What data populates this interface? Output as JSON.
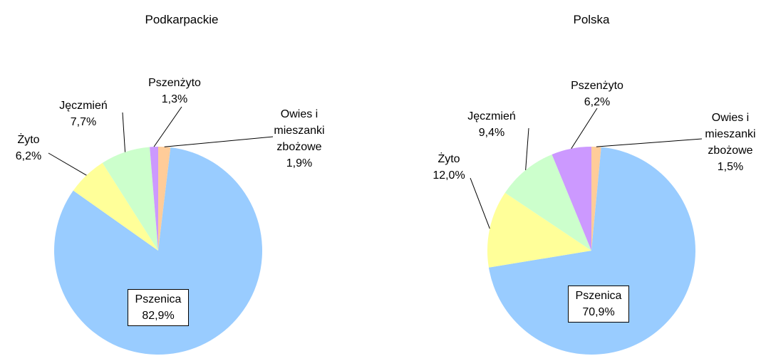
{
  "chart_data": [
    {
      "type": "pie",
      "title": "Podkarpackie",
      "categories": [
        "Owies i mieszanki zbożowe",
        "Pszenica",
        "Żyto",
        "Jęczmień",
        "Pszenżyto"
      ],
      "values": [
        1.9,
        82.9,
        6.2,
        7.7,
        1.3
      ],
      "value_labels": [
        "1,9%",
        "82,9%",
        "6,2%",
        "7,7%",
        "1,3%"
      ],
      "colors": [
        "#ffcc99",
        "#99ccff",
        "#ffff99",
        "#ccffcc",
        "#cc99ff"
      ]
    },
    {
      "type": "pie",
      "title": "Polska",
      "categories": [
        "Owies i mieszanki zbożowe",
        "Pszenica",
        "Żyto",
        "Jęczmień",
        "Pszenżyto"
      ],
      "values": [
        1.5,
        70.9,
        12.0,
        9.4,
        6.2
      ],
      "value_labels": [
        "1,5%",
        "70,9%",
        "12,0%",
        "9,4%",
        "6,2%"
      ],
      "colors": [
        "#ffcc99",
        "#99ccff",
        "#ffff99",
        "#ccffcc",
        "#cc99ff"
      ]
    }
  ]
}
